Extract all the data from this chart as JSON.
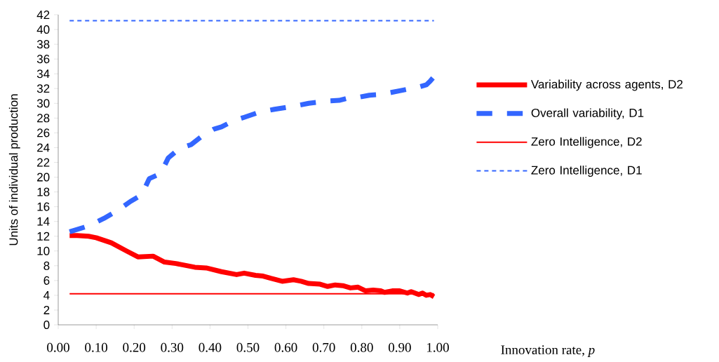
{
  "chart_data": {
    "type": "line",
    "xlabel": "Innovation rate, *p*",
    "ylabel": "Units of individual production",
    "xlim": [
      0,
      1
    ],
    "ylim": [
      0,
      42
    ],
    "xticks": [
      {
        "value": 0,
        "label": "0.00"
      },
      {
        "value": 0.1,
        "label": "0.10"
      },
      {
        "value": 0.2,
        "label": "0.20"
      },
      {
        "value": 0.3,
        "label": "0.30"
      },
      {
        "value": 0.4,
        "label": "0.40"
      },
      {
        "value": 0.5,
        "label": "0.50"
      },
      {
        "value": 0.6,
        "label": "0.60"
      },
      {
        "value": 0.7,
        "label": "0.70"
      },
      {
        "value": 0.8,
        "label": "0.80"
      },
      {
        "value": 0.9,
        "label": "0.90"
      },
      {
        "value": 1,
        "label": "1.00"
      }
    ],
    "yticks": [
      0,
      2,
      4,
      6,
      8,
      10,
      12,
      14,
      16,
      18,
      20,
      22,
      24,
      26,
      28,
      30,
      32,
      34,
      36,
      38,
      40,
      42
    ],
    "legend": "right",
    "series": [
      {
        "name": "Variability across agents, D2",
        "color": "#ff0000",
        "line_style": "solid",
        "x": [
          0.03,
          0.05,
          0.08,
          0.1,
          0.14,
          0.18,
          0.21,
          0.25,
          0.28,
          0.31,
          0.36,
          0.39,
          0.43,
          0.47,
          0.49,
          0.52,
          0.54,
          0.56,
          0.59,
          0.62,
          0.64,
          0.66,
          0.69,
          0.71,
          0.73,
          0.75,
          0.77,
          0.79,
          0.81,
          0.83,
          0.85,
          0.86,
          0.88,
          0.9,
          0.92,
          0.93,
          0.95,
          0.96,
          0.97,
          0.98,
          0.99
        ],
        "values": [
          12.1,
          12.1,
          12.0,
          11.8,
          11.1,
          10.0,
          9.2,
          9.3,
          8.5,
          8.3,
          7.8,
          7.7,
          7.2,
          6.8,
          7.0,
          6.7,
          6.6,
          6.3,
          5.9,
          6.1,
          5.9,
          5.6,
          5.5,
          5.2,
          5.4,
          5.3,
          5.0,
          5.1,
          4.6,
          4.7,
          4.6,
          4.4,
          4.6,
          4.6,
          4.3,
          4.5,
          4.1,
          4.3,
          4.0,
          4.1,
          3.8
        ]
      },
      {
        "name": "Overall variability, D1",
        "color": "#3366ff",
        "line_style": "dashed",
        "x": [
          0.03,
          0.08,
          0.12,
          0.16,
          0.19,
          0.22,
          0.24,
          0.27,
          0.29,
          0.32,
          0.35,
          0.38,
          0.41,
          0.43,
          0.46,
          0.49,
          0.53,
          0.57,
          0.62,
          0.66,
          0.71,
          0.74,
          0.77,
          0.79,
          0.82,
          0.85,
          0.88,
          0.9,
          0.93,
          0.95,
          0.97,
          0.98,
          0.99
        ],
        "values": [
          12.6,
          13.4,
          14.4,
          15.6,
          16.7,
          17.6,
          19.8,
          20.5,
          22.6,
          23.9,
          24.4,
          25.6,
          26.5,
          26.8,
          27.6,
          28.1,
          28.8,
          29.2,
          29.6,
          30.0,
          30.3,
          30.4,
          30.8,
          30.8,
          31.1,
          31.2,
          31.5,
          31.7,
          32.0,
          32.2,
          32.5,
          33.0,
          33.6
        ]
      },
      {
        "name": "Zero Intelligence, D2",
        "color": "#ff0000",
        "line_style": "solid",
        "x": [
          0.03,
          0.99
        ],
        "values": [
          4.2,
          4.2
        ]
      },
      {
        "name": "Zero Intelligence, D1",
        "color": "#3366ff",
        "line_style": "dotted",
        "x": [
          0.03,
          0.99
        ],
        "values": [
          41.2,
          41.2
        ]
      }
    ]
  }
}
